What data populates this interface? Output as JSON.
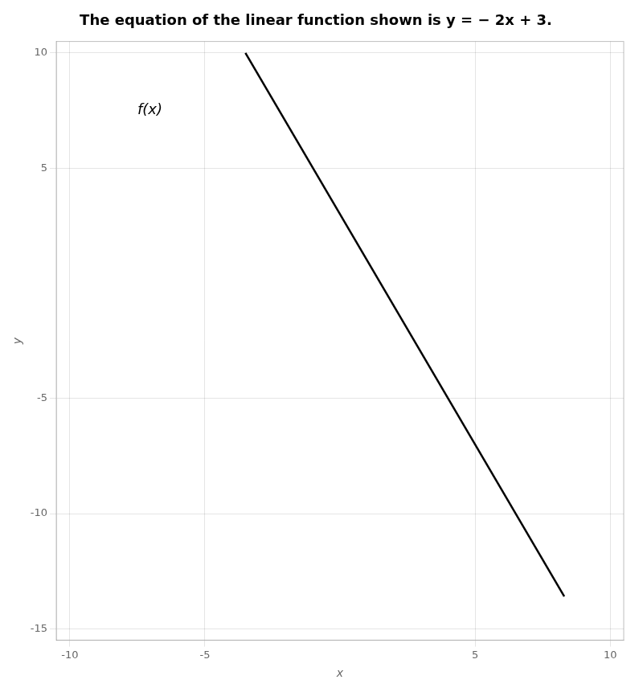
{
  "chart_data": {
    "type": "line",
    "title": "The equation of the linear function shown is y = − 2x + 3.",
    "x_label": "x",
    "y_label": "y",
    "x": [
      -3.5,
      8.3
    ],
    "values": [
      10,
      -13.6
    ],
    "color": "#000000",
    "xlim": [
      -10.5,
      10.5
    ],
    "ylim": [
      -15.5,
      10.5
    ],
    "xticks": [
      -10,
      -5,
      5,
      10
    ],
    "yticks": [
      -15,
      -10,
      -5,
      5,
      10
    ],
    "grid": true,
    "annotations": [
      {
        "text": "f(x)",
        "x": -7.5,
        "y": 7.5
      }
    ]
  }
}
